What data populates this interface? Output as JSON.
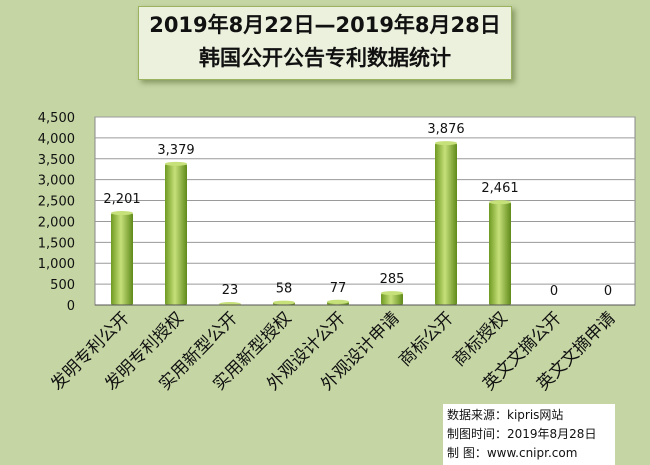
{
  "chart_data": {
    "type": "bar",
    "title_line1": "2019年8月22日—2019年8月28日",
    "title_line2": "韩国公开公告专利数据统计",
    "categories": [
      "发明专利公开",
      "发明专利授权",
      "实用新型公开",
      "实用新型授权",
      "外观设计公开",
      "外观设计申请",
      "商标公开",
      "商标授权",
      "英文文摘公开",
      "英文文摘申请"
    ],
    "values": [
      2201,
      3379,
      23,
      58,
      77,
      285,
      3876,
      2461,
      0,
      0
    ],
    "data_labels": [
      "2,201",
      "3,379",
      "23",
      "58",
      "77",
      "285",
      "3,876",
      "2,461",
      "0",
      "0"
    ],
    "y_ticks": [
      "0",
      "500",
      "1,000",
      "1,500",
      "2,000",
      "2,500",
      "3,000",
      "3,500",
      "4,000",
      "4,500"
    ],
    "ylim": [
      0,
      4500
    ],
    "grid": true,
    "legend": "none",
    "bar_color": "#8db43a",
    "bar_highlight": "#c6e07a",
    "plot_bg": "#ffffff",
    "grid_color": "#9a9a9a"
  },
  "source": {
    "line1": "数据来源：kipris网站",
    "line2": "制图时间：2019年8月28日",
    "line3": "制    图：www.cnipr.com"
  }
}
